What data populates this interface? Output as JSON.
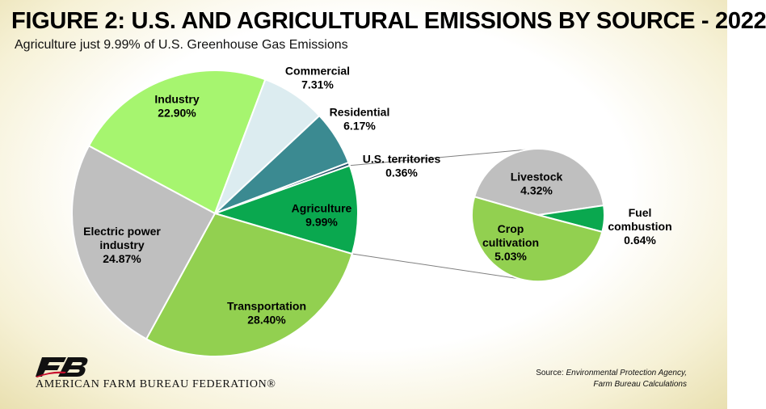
{
  "title": "FIGURE 2: U.S. AND AGRICULTURAL EMISSIONS BY SOURCE - 2022",
  "subtitle": "Agriculture just 9.99% of U.S. Greenhouse Gas Emissions",
  "source": {
    "label": "Source:",
    "line1": "Environmental Protection Agency,",
    "line2": "Farm Bureau Calculations"
  },
  "logo": {
    "mark": "FB",
    "text": "AMERICAN FARM BUREAU FEDERATION®"
  },
  "chart_data": [
    {
      "type": "pie",
      "slices": [
        {
          "label": "Agriculture",
          "value": 9.99,
          "display": "9.99%",
          "color": "#0aa84f"
        },
        {
          "label": "Transportation",
          "value": 28.4,
          "display": "28.40%",
          "color": "#92d050"
        },
        {
          "label": "Electric power industry",
          "label_lines": [
            "Electric power",
            "industry"
          ],
          "value": 24.87,
          "display": "24.87%",
          "color": "#bfbfbf"
        },
        {
          "label": "Industry",
          "value": 22.9,
          "display": "22.90%",
          "color": "#a6f56f"
        },
        {
          "label": "Commercial",
          "value": 7.31,
          "display": "7.31%",
          "color": "#dcecf0"
        },
        {
          "label": "Residential",
          "value": 6.17,
          "display": "6.17%",
          "color": "#3b8a91"
        },
        {
          "label": "U.S. territories",
          "value": 0.36,
          "display": "0.36%",
          "color": "#1f4f66"
        }
      ]
    },
    {
      "type": "pie",
      "slices": [
        {
          "label": "Livestock",
          "value": 4.32,
          "display": "4.32%",
          "color": "#bfbfbf"
        },
        {
          "label": "Fuel combustion",
          "label_lines": [
            "Fuel",
            "combustion"
          ],
          "value": 0.64,
          "display": "0.64%",
          "color": "#0aa84f"
        },
        {
          "label": "Crop cultivation",
          "label_lines": [
            "Crop",
            "cultivation"
          ],
          "value": 5.03,
          "display": "5.03%",
          "color": "#92d050"
        }
      ]
    }
  ]
}
